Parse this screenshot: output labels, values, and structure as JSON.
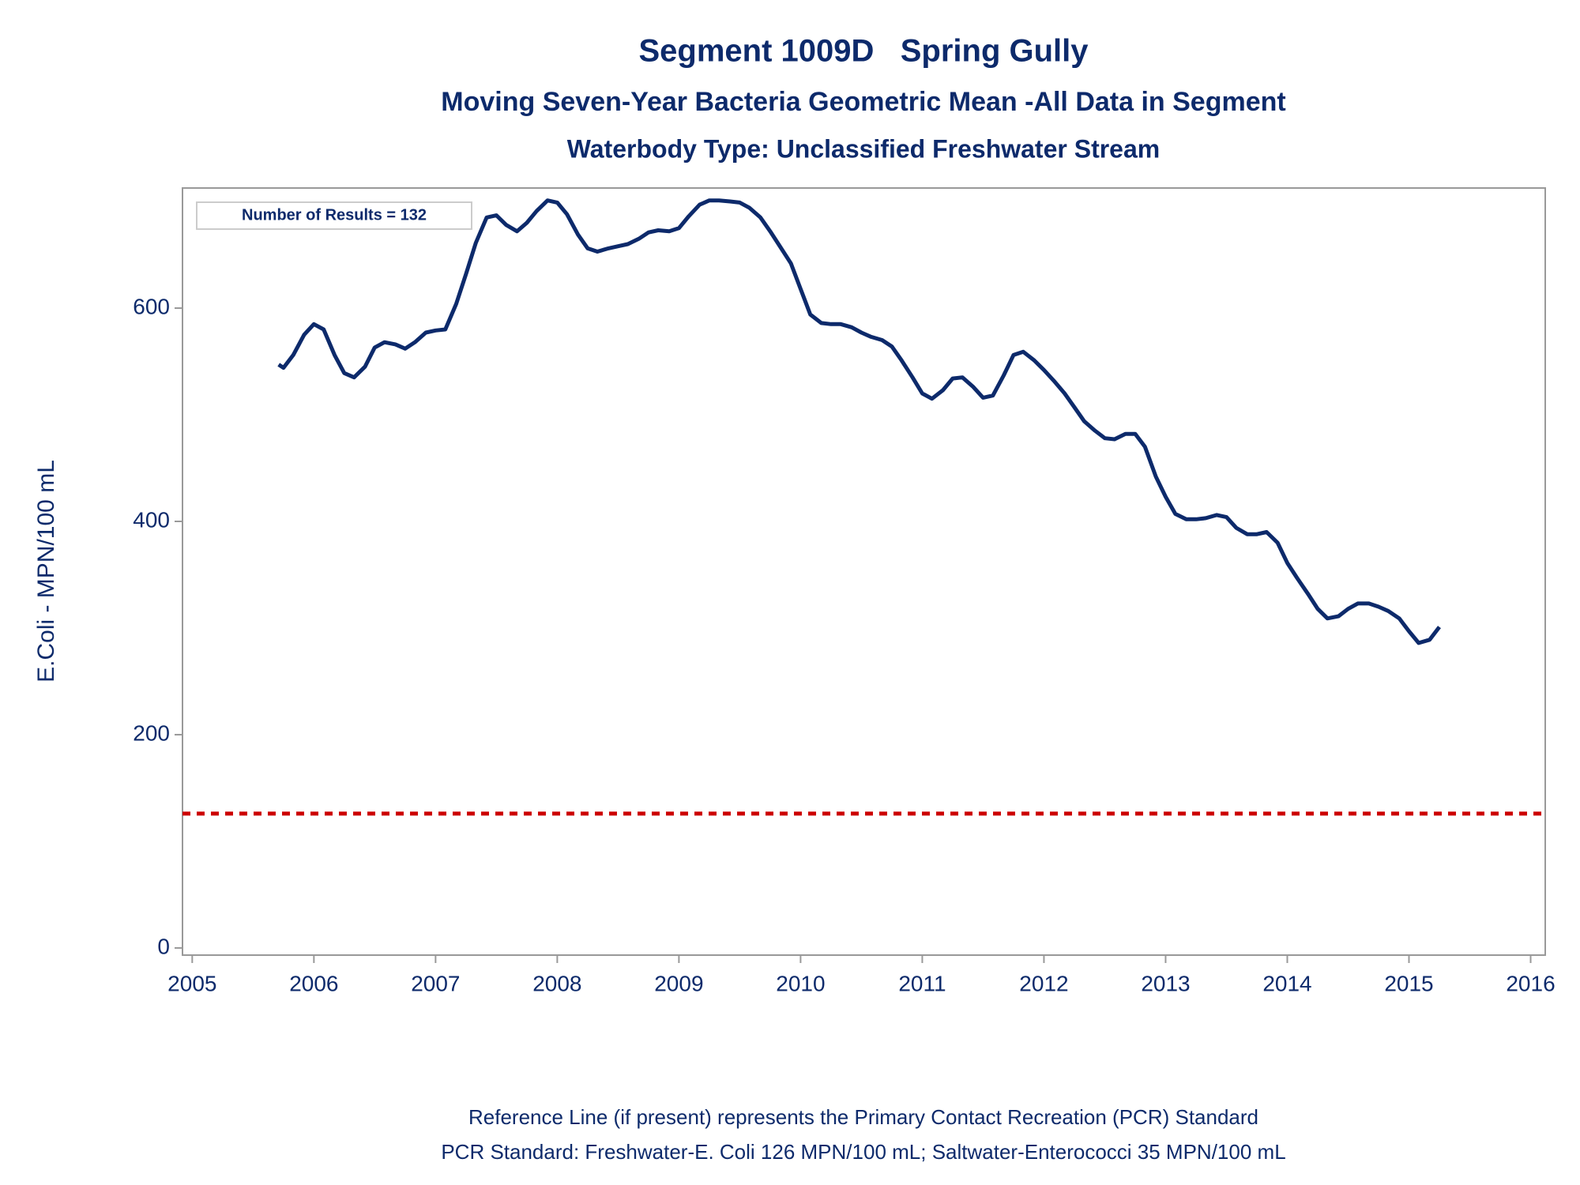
{
  "chart_data": {
    "type": "line",
    "title": "Segment 1009D   Spring Gully",
    "subtitle": "Moving Seven-Year Bacteria Geometric Mean -All Data in Segment",
    "subtitle2": "Waterbody Type: Unclassified Freshwater Stream",
    "ylabel": "E.Coli - MPN/100 mL",
    "annotation": "Number of Results = 132",
    "footnotes": [
      "Reference Line (if present) represents the Primary Contact Recreation (PCR) Standard",
      "PCR Standard: Freshwater-E. Coli 126 MPN/100 mL; Saltwater-Enterococci 35 MPN/100 mL"
    ],
    "reference_line": {
      "value": 126,
      "color": "#cc0000"
    },
    "x": [
      2005.71,
      2005.75,
      2005.83,
      2005.92,
      2006.0,
      2006.08,
      2006.17,
      2006.25,
      2006.33,
      2006.42,
      2006.5,
      2006.58,
      2006.67,
      2006.75,
      2006.83,
      2006.92,
      2007.0,
      2007.08,
      2007.17,
      2007.25,
      2007.33,
      2007.42,
      2007.5,
      2007.58,
      2007.67,
      2007.75,
      2007.83,
      2007.92,
      2008.0,
      2008.08,
      2008.17,
      2008.25,
      2008.33,
      2008.42,
      2008.5,
      2008.58,
      2008.67,
      2008.75,
      2008.83,
      2008.92,
      2009.0,
      2009.08,
      2009.17,
      2009.25,
      2009.33,
      2009.42,
      2009.5,
      2009.58,
      2009.67,
      2009.75,
      2009.83,
      2009.92,
      2010.0,
      2010.08,
      2010.17,
      2010.25,
      2010.33,
      2010.42,
      2010.5,
      2010.58,
      2010.67,
      2010.75,
      2010.83,
      2010.92,
      2011.0,
      2011.08,
      2011.17,
      2011.25,
      2011.33,
      2011.42,
      2011.5,
      2011.58,
      2011.67,
      2011.75,
      2011.83,
      2011.92,
      2012.0,
      2012.08,
      2012.17,
      2012.25,
      2012.33,
      2012.42,
      2012.5,
      2012.58,
      2012.67,
      2012.75,
      2012.83,
      2012.92,
      2013.0,
      2013.08,
      2013.17,
      2013.25,
      2013.33,
      2013.42,
      2013.5,
      2013.58,
      2013.67,
      2013.75,
      2013.83,
      2013.92,
      2014.0,
      2014.08,
      2014.17,
      2014.25,
      2014.33,
      2014.42,
      2014.5,
      2014.58,
      2014.67,
      2014.75,
      2014.83,
      2014.92,
      2015.0,
      2015.08,
      2015.17,
      2015.25
    ],
    "series": [
      {
        "name": "Geometric Mean",
        "color": "#0d2a6b",
        "values": [
          547,
          544,
          556,
          575,
          585,
          580,
          556,
          539,
          535,
          545,
          563,
          568,
          566,
          562,
          568,
          577,
          579,
          580,
          604,
          632,
          661,
          685,
          687,
          678,
          672,
          680,
          691,
          701,
          699,
          688,
          669,
          656,
          653,
          656,
          658,
          660,
          665,
          671,
          673,
          672,
          675,
          686,
          697,
          701,
          701,
          700,
          699,
          694,
          685,
          672,
          658,
          642,
          618,
          594,
          586,
          585,
          585,
          582,
          577,
          573,
          570,
          564,
          551,
          535,
          520,
          515,
          523,
          534,
          535,
          526,
          516,
          518,
          537,
          556,
          559,
          551,
          542,
          532,
          520,
          507,
          494,
          485,
          478,
          477,
          482,
          482,
          470,
          442,
          423,
          407,
          402,
          402,
          403,
          406,
          404,
          394,
          388,
          388,
          390,
          380,
          361,
          347,
          332,
          318,
          309,
          311,
          318,
          323,
          323,
          320,
          316,
          309,
          297,
          286,
          289,
          301
        ]
      }
    ],
    "xlim": [
      2004.92,
      2016.12
    ],
    "xticks": [
      2005,
      2006,
      2007,
      2008,
      2009,
      2010,
      2011,
      2012,
      2013,
      2014,
      2015,
      2016
    ],
    "ylim": [
      -6.7,
      712.6
    ],
    "yticks": [
      0,
      200,
      400,
      600
    ]
  }
}
